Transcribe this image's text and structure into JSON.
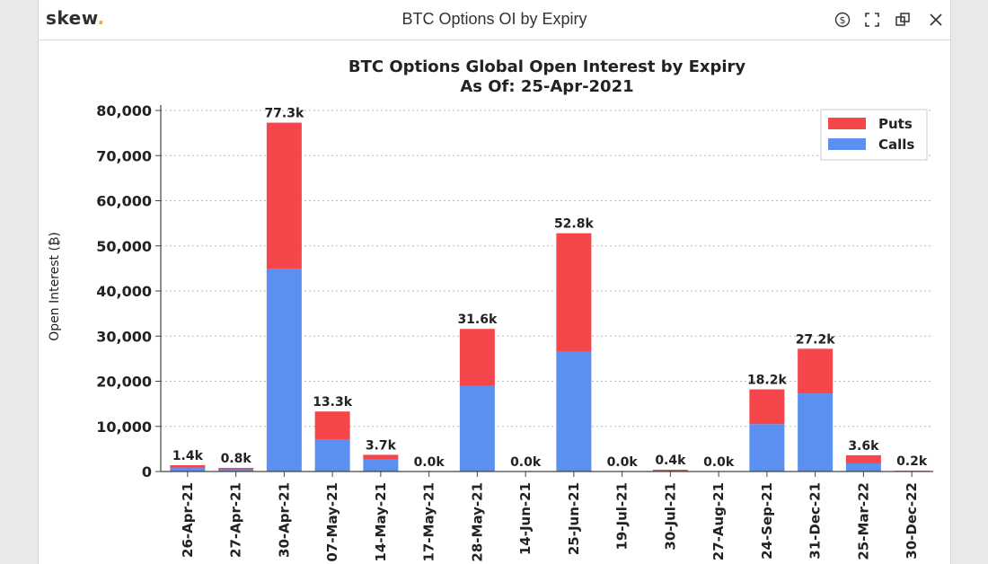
{
  "window": {
    "brand": "skew",
    "brand_dot": ".",
    "title": "BTC Options OI by Expiry",
    "icons": [
      "dollar-icon",
      "fullscreen-icon",
      "popout-icon",
      "close-icon"
    ]
  },
  "colors": {
    "puts": "#f5474b",
    "calls": "#5b8ff0",
    "grid": "#bbbbbb",
    "brand_dot": "#f5a623"
  },
  "chart_data": {
    "type": "bar",
    "stacked": true,
    "title": "BTC Options Global Open Interest by Expiry",
    "subtitle": "As Of: 25-Apr-2021",
    "xlabel": "",
    "ylabel": "Open Interest (₿)",
    "ylim": [
      0,
      80000
    ],
    "yticks": [
      0,
      10000,
      20000,
      30000,
      40000,
      50000,
      60000,
      70000,
      80000
    ],
    "ytick_labels": [
      "0",
      "10,000",
      "20,000",
      "30,000",
      "40,000",
      "50,000",
      "60,000",
      "70,000",
      "80,000"
    ],
    "grid": true,
    "legend_position": "top-right",
    "categories": [
      "26-Apr-21",
      "27-Apr-21",
      "30-Apr-21",
      "07-May-21",
      "14-May-21",
      "17-May-21",
      "28-May-21",
      "14-Jun-21",
      "25-Jun-21",
      "19-Jul-21",
      "30-Jul-21",
      "27-Aug-21",
      "24-Sep-21",
      "31-Dec-21",
      "25-Mar-22",
      "30-Dec-22"
    ],
    "series": [
      {
        "name": "Calls",
        "values": [
          900,
          500,
          44900,
          7000,
          2700,
          0,
          19000,
          0,
          26500,
          0,
          100,
          0,
          10500,
          17300,
          1800,
          150
        ]
      },
      {
        "name": "Puts",
        "values": [
          500,
          300,
          32400,
          6300,
          1000,
          0,
          12600,
          0,
          26300,
          0,
          300,
          0,
          7700,
          9900,
          1800,
          50
        ]
      }
    ],
    "totals_labels": [
      "1.4k",
      "0.8k",
      "77.3k",
      "13.3k",
      "3.7k",
      "0.0k",
      "31.6k",
      "0.0k",
      "52.8k",
      "0.0k",
      "0.4k",
      "0.0k",
      "18.2k",
      "27.2k",
      "3.6k",
      "0.2k"
    ],
    "legend": [
      "Puts",
      "Calls"
    ]
  }
}
